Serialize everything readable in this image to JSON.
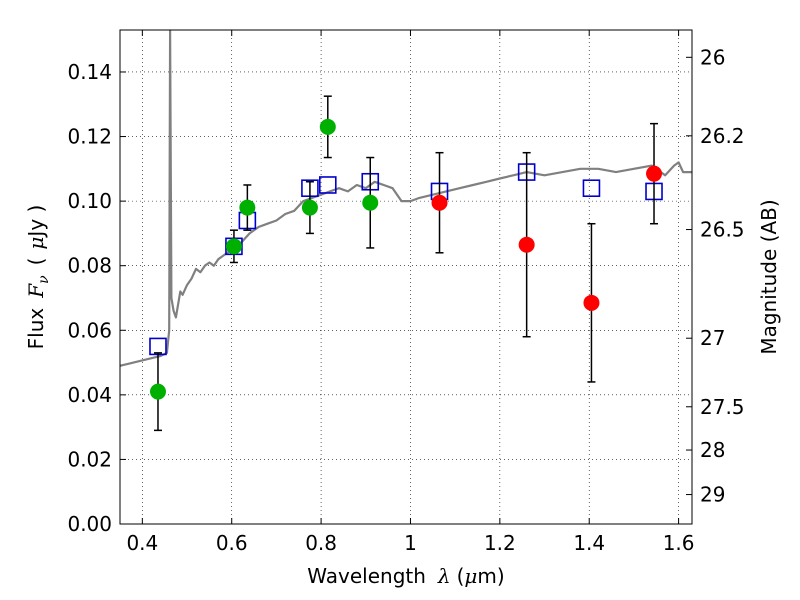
{
  "chart_data": {
    "type": "scatter",
    "title": "",
    "xlabel": {
      "prefix": "Wavelength",
      "symbol": "λ",
      "unit_open": "(",
      "unit_mu": "μ",
      "unit_rest": "m)"
    },
    "ylabel": {
      "prefix": "Flux",
      "symbol": "F",
      "subscript": "ν",
      "unit_open": "(",
      "unit_mu": "μ",
      "unit_rest": "Jy )"
    },
    "y2label": "Magnitude (AB)",
    "xlim": [
      0.35,
      1.63
    ],
    "ylim": [
      0.0,
      0.153
    ],
    "grid": true,
    "x_ticks": [
      {
        "value": 0.4,
        "label": "0.4"
      },
      {
        "value": 0.6,
        "label": "0.6"
      },
      {
        "value": 0.8,
        "label": "0.8"
      },
      {
        "value": 1.0,
        "label": "1"
      },
      {
        "value": 1.2,
        "label": "1.2"
      },
      {
        "value": 1.4,
        "label": "1.4"
      },
      {
        "value": 1.6,
        "label": "1.6"
      }
    ],
    "y_ticks": [
      {
        "value": 0.0,
        "label": "0.00"
      },
      {
        "value": 0.02,
        "label": "0.02"
      },
      {
        "value": 0.04,
        "label": "0.04"
      },
      {
        "value": 0.06,
        "label": "0.06"
      },
      {
        "value": 0.08,
        "label": "0.08"
      },
      {
        "value": 0.1,
        "label": "0.10"
      },
      {
        "value": 0.12,
        "label": "0.12"
      },
      {
        "value": 0.14,
        "label": "0.14"
      }
    ],
    "y2_ticks": [
      {
        "mag": 26,
        "label": "26"
      },
      {
        "mag": 26.2,
        "label": "26.2"
      },
      {
        "mag": 26.5,
        "label": "26.5"
      },
      {
        "mag": 27,
        "label": "27"
      },
      {
        "mag": 27.5,
        "label": "27.5"
      },
      {
        "mag": 28,
        "label": "28"
      },
      {
        "mag": 29,
        "label": "29"
      }
    ],
    "series": [
      {
        "marker": "line",
        "color": "#808080",
        "x": [
          0.35,
          0.38,
          0.41,
          0.44,
          0.455,
          0.46,
          0.462,
          0.465,
          0.47,
          0.475,
          0.48,
          0.485,
          0.49,
          0.5,
          0.51,
          0.52,
          0.53,
          0.54,
          0.55,
          0.56,
          0.57,
          0.58,
          0.59,
          0.6,
          0.62,
          0.64,
          0.66,
          0.68,
          0.7,
          0.72,
          0.74,
          0.76,
          0.78,
          0.8,
          0.82,
          0.84,
          0.86,
          0.88,
          0.9,
          0.92,
          0.94,
          0.96,
          0.98,
          1.0,
          1.02,
          1.05,
          1.08,
          1.11,
          1.14,
          1.17,
          1.2,
          1.23,
          1.26,
          1.3,
          1.34,
          1.38,
          1.42,
          1.46,
          1.5,
          1.54,
          1.57,
          1.59,
          1.6,
          1.61,
          1.63
        ],
        "y": [
          0.049,
          0.05,
          0.051,
          0.052,
          0.053,
          0.06,
          0.153,
          0.07,
          0.066,
          0.064,
          0.068,
          0.072,
          0.071,
          0.074,
          0.076,
          0.079,
          0.078,
          0.08,
          0.081,
          0.08,
          0.082,
          0.083,
          0.084,
          0.085,
          0.087,
          0.09,
          0.092,
          0.093,
          0.094,
          0.096,
          0.097,
          0.1,
          0.101,
          0.102,
          0.103,
          0.104,
          0.103,
          0.105,
          0.104,
          0.106,
          0.105,
          0.104,
          0.1,
          0.1,
          0.101,
          0.102,
          0.103,
          0.104,
          0.105,
          0.106,
          0.107,
          0.108,
          0.109,
          0.108,
          0.109,
          0.11,
          0.11,
          0.109,
          0.11,
          0.111,
          0.108,
          0.111,
          0.112,
          0.109,
          0.109
        ]
      },
      {
        "marker": "open-square",
        "color": "#0000cc",
        "x": [
          0.435,
          0.605,
          0.635,
          0.775,
          0.815,
          0.91,
          1.065,
          1.26,
          1.405,
          1.545
        ],
        "y": [
          0.055,
          0.086,
          0.094,
          0.104,
          0.105,
          0.106,
          0.103,
          0.109,
          0.104,
          0.103
        ]
      },
      {
        "marker": "filled-circle",
        "color": "#00b000",
        "x": [
          0.435,
          0.605,
          0.635,
          0.775,
          0.815,
          0.91
        ],
        "y": [
          0.041,
          0.086,
          0.098,
          0.098,
          0.123,
          0.0995
        ],
        "yerr": [
          0.012,
          0.005,
          0.007,
          0.008,
          0.0095,
          0.014
        ]
      },
      {
        "marker": "filled-circle",
        "color": "#ff0000",
        "x": [
          1.065,
          1.26,
          1.405,
          1.545
        ],
        "y": [
          0.0995,
          0.0865,
          0.0685,
          0.1085
        ],
        "yerr": [
          0.0155,
          0.0285,
          0.0245,
          0.0155
        ]
      }
    ],
    "errorbar_color": "#000000"
  }
}
